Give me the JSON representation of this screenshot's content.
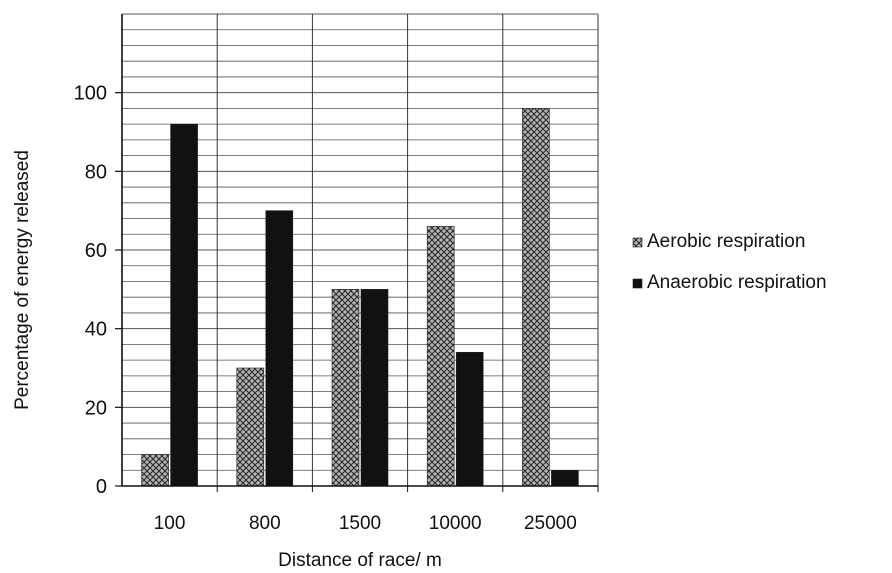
{
  "chart_data": {
    "type": "bar",
    "title": "",
    "xlabel": "Distance of race/ m",
    "ylabel": "Percentage of energy released",
    "categories": [
      "100",
      "800",
      "1500",
      "10000",
      "25000"
    ],
    "series": [
      {
        "name": "Aerobic respiration",
        "values": [
          8,
          30,
          50,
          66,
          96
        ],
        "color": "#8a8a8a",
        "pattern": "crosshatch"
      },
      {
        "name": "Anaerobic respiration",
        "values": [
          92,
          70,
          50,
          34,
          4
        ],
        "color": "#111111",
        "pattern": "solid"
      }
    ],
    "ylim": [
      0,
      120
    ],
    "yticks": [
      0,
      20,
      40,
      60,
      80,
      100
    ],
    "grid": true,
    "legend_position": "right"
  }
}
